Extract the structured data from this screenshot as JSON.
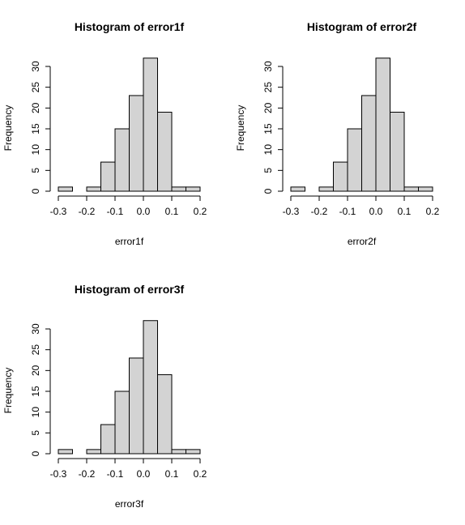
{
  "chart_data": [
    {
      "type": "bar",
      "title": "Histogram of error1f",
      "xlabel": "error1f",
      "ylabel": "Frequency",
      "bin_edges": [
        -0.3,
        -0.25,
        -0.2,
        -0.15,
        -0.1,
        -0.05,
        0.0,
        0.05,
        0.1,
        0.15,
        0.2
      ],
      "values": [
        1,
        0,
        1,
        7,
        15,
        23,
        32,
        19,
        1,
        1
      ],
      "xticks": [
        -0.3,
        -0.2,
        -0.1,
        0.0,
        0.1,
        0.2
      ],
      "xtick_labels": [
        "-0.3",
        "-0.2",
        "-0.1",
        "0.0",
        "0.1",
        "0.2"
      ],
      "yticks": [
        0,
        5,
        10,
        15,
        20,
        25,
        30
      ],
      "ytick_labels": [
        "0",
        "5",
        "10",
        "15",
        "20",
        "25",
        "30"
      ],
      "xlim": [
        -0.3,
        0.2
      ],
      "ylim": [
        0,
        30
      ],
      "grid": false,
      "bar_color": "#d3d3d3"
    },
    {
      "type": "bar",
      "title": "Histogram of error2f",
      "xlabel": "error2f",
      "ylabel": "Frequency",
      "bin_edges": [
        -0.3,
        -0.25,
        -0.2,
        -0.15,
        -0.1,
        -0.05,
        0.0,
        0.05,
        0.1,
        0.15,
        0.2
      ],
      "values": [
        1,
        0,
        1,
        7,
        15,
        23,
        32,
        19,
        1,
        1
      ],
      "xticks": [
        -0.3,
        -0.2,
        -0.1,
        0.0,
        0.1,
        0.2
      ],
      "xtick_labels": [
        "-0.3",
        "-0.2",
        "-0.1",
        "0.0",
        "0.1",
        "0.2"
      ],
      "yticks": [
        0,
        5,
        10,
        15,
        20,
        25,
        30
      ],
      "ytick_labels": [
        "0",
        "5",
        "10",
        "15",
        "20",
        "25",
        "30"
      ],
      "xlim": [
        -0.3,
        0.2
      ],
      "ylim": [
        0,
        30
      ],
      "grid": false,
      "bar_color": "#d3d3d3"
    },
    {
      "type": "bar",
      "title": "Histogram of error3f",
      "xlabel": "error3f",
      "ylabel": "Frequency",
      "bin_edges": [
        -0.3,
        -0.25,
        -0.2,
        -0.15,
        -0.1,
        -0.05,
        0.0,
        0.05,
        0.1,
        0.15,
        0.2
      ],
      "values": [
        1,
        0,
        1,
        7,
        15,
        23,
        32,
        19,
        1,
        1
      ],
      "xticks": [
        -0.3,
        -0.2,
        -0.1,
        0.0,
        0.1,
        0.2
      ],
      "xtick_labels": [
        "-0.3",
        "-0.2",
        "-0.1",
        "0.0",
        "0.1",
        "0.2"
      ],
      "yticks": [
        0,
        5,
        10,
        15,
        20,
        25,
        30
      ],
      "ytick_labels": [
        "0",
        "5",
        "10",
        "15",
        "20",
        "25",
        "30"
      ],
      "xlim": [
        -0.3,
        0.2
      ],
      "ylim": [
        0,
        30
      ],
      "grid": false,
      "bar_color": "#d3d3d3"
    }
  ]
}
